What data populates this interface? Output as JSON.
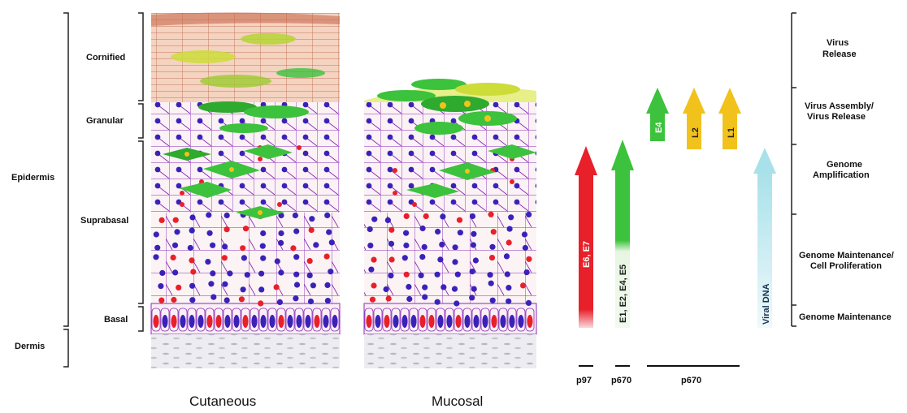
{
  "left_labels": {
    "epidermis": "Epidermis",
    "dermis": "Dermis",
    "cornified": "Cornified",
    "granular": "Granular",
    "suprabasal": "Suprabasal",
    "basal": "Basal"
  },
  "panels": {
    "cutaneous": "Cutaneous",
    "mucosal": "Mucosal"
  },
  "arrows": {
    "e6e7": "E6, E7",
    "early": "E1, E2, E4, E5",
    "e4": "E4",
    "l2": "L2",
    "l1": "L1",
    "viral_dna": "Viral DNA"
  },
  "promoters": {
    "p97": "p97",
    "p670_a": "p670",
    "p670_b": "p670"
  },
  "stages": {
    "release": [
      "Virus",
      "Release"
    ],
    "assembly": [
      "Virus Assembly/",
      "Virus Release"
    ],
    "amplification": [
      "Genome",
      "Amplification"
    ],
    "maintenance_prolif": [
      "Genome Maintenance/",
      "Cell Proliferation"
    ],
    "maintenance": [
      "Genome Maintenance"
    ]
  },
  "colors": {
    "early_red": "#e8202a",
    "green": "#3cc23c",
    "yellow": "#f2c21c",
    "viral_dna": "#aee3ea",
    "membrane": "#8a2bb8",
    "nucleus": "#3a22b8",
    "dermis": "#e6e6ec"
  }
}
